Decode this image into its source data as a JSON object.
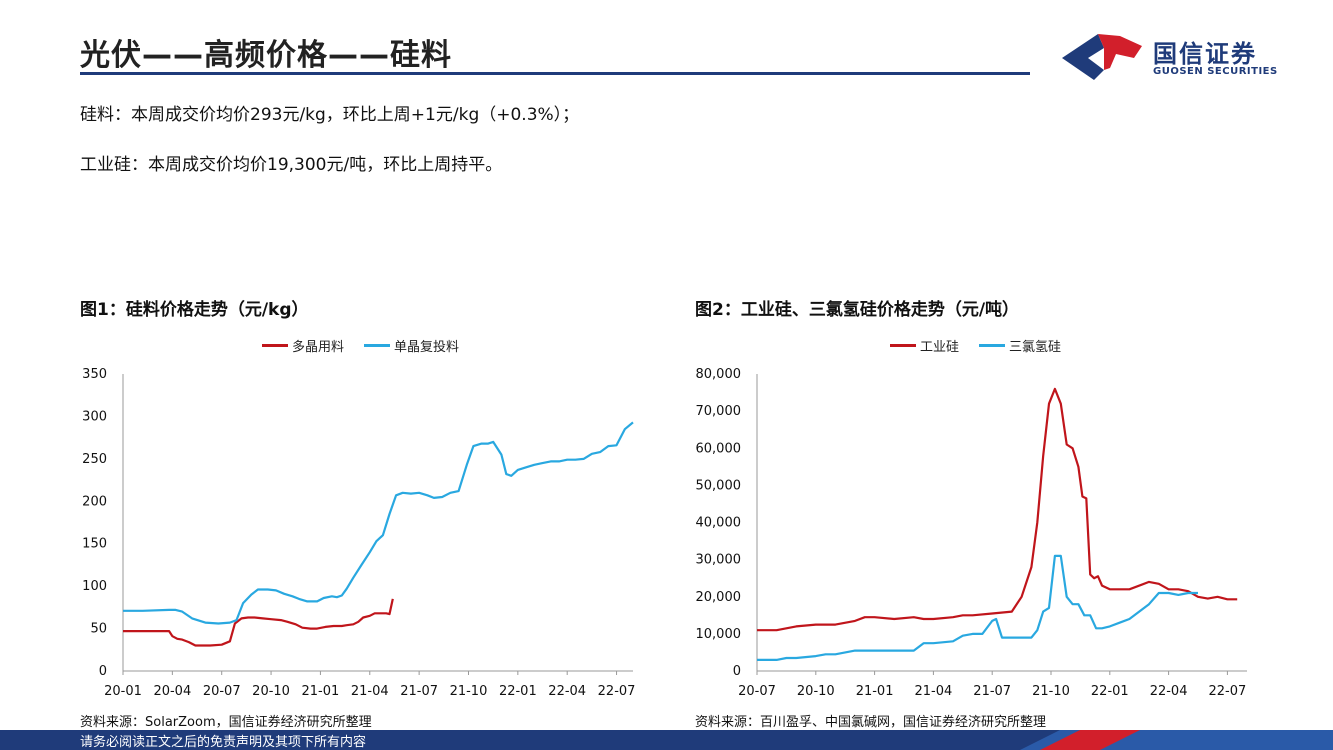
{
  "header": {
    "title": "光伏——高频价格——硅料",
    "logo_cn": "国信证券",
    "logo_en": "GUOSEN SECURITIES"
  },
  "summary": {
    "line1": "硅料：本周成交价均价293元/kg，环比上周+1元/kg（+0.3%）；",
    "line2": "工业硅：本周成交价均价19,300元/吨，环比上周持平。"
  },
  "colors": {
    "red": "#c0151b",
    "blue": "#29a8e0",
    "navy": "#1f3b7a"
  },
  "chart1": {
    "heading": "图1：硅料价格走势（元/kg）",
    "legend": [
      "多晶用料",
      "单晶复投料"
    ],
    "source": "资料来源：SolarZoom，国信证券经济研究所整理"
  },
  "chart2": {
    "heading": "图2：工业硅、三氯氢硅价格走势（元/吨）",
    "legend": [
      "工业硅",
      "三氯氢硅"
    ],
    "source": "资料来源：百川盈孚、中国氯碱网，国信证券经济研究所整理"
  },
  "footer": {
    "text": "请务必阅读正文之后的免责声明及其项下所有内容"
  },
  "chart_data": [
    {
      "type": "line",
      "title": "图1：硅料价格走势（元/kg）",
      "xlabel": "",
      "ylabel": "元/kg",
      "ylim": [
        0,
        350
      ],
      "yticks": [
        0,
        50,
        100,
        150,
        200,
        250,
        300,
        350
      ],
      "ytick_labels": [
        "0",
        "50",
        "100",
        "150",
        "200",
        "250",
        "300",
        "350"
      ],
      "xlim": [
        0,
        31
      ],
      "xticks": [
        0,
        3,
        6,
        9,
        12,
        15,
        18,
        21,
        24,
        27,
        30
      ],
      "xtick_labels": [
        "20-01",
        "20-04",
        "20-07",
        "20-10",
        "21-01",
        "21-04",
        "21-07",
        "21-10",
        "22-01",
        "22-04",
        "22-07"
      ],
      "series": [
        {
          "name": "多晶用料",
          "color": "#c0151b",
          "x": [
            0,
            2.8,
            3.0,
            3.3,
            3.6,
            4.0,
            4.4,
            4.9,
            5.3,
            6.0,
            6.5,
            6.8,
            7.2,
            7.6,
            8.0,
            8.5,
            9.0,
            9.6,
            10.0,
            10.5,
            10.9,
            11.4,
            11.8,
            12.3,
            12.8,
            13.3,
            13.6,
            14.0,
            14.3,
            14.6,
            15.0,
            15.3,
            15.6,
            16.0,
            16.2,
            16.4
          ],
          "values": [
            47,
            47,
            41,
            38,
            37,
            34,
            30,
            30,
            30,
            31,
            35,
            56,
            62,
            63,
            63,
            62,
            61,
            60,
            58,
            55,
            51,
            50,
            50,
            52,
            53,
            53,
            54,
            55,
            58,
            63,
            65,
            68,
            68,
            68,
            67,
            85
          ]
        },
        {
          "name": "单晶复投料",
          "color": "#29a8e0",
          "x": [
            0,
            1.2,
            2.8,
            3.2,
            3.6,
            4.2,
            5.0,
            5.8,
            6.5,
            6.9,
            7.3,
            7.8,
            8.2,
            8.8,
            9.3,
            9.8,
            10.3,
            10.7,
            11.2,
            11.8,
            12.2,
            12.7,
            13.0,
            13.3,
            13.6,
            14.0,
            14.5,
            15.0,
            15.4,
            15.8,
            16.2,
            16.6,
            17.0,
            17.5,
            18.0,
            18.5,
            18.9,
            19.4,
            19.9,
            20.4,
            20.9,
            21.3,
            21.8,
            22.2,
            22.5,
            23.0,
            23.3,
            23.6,
            24.0,
            24.5,
            25.0,
            25.5,
            26.0,
            26.5,
            27.0,
            27.5,
            28.0,
            28.5,
            29.0,
            29.5,
            30.0,
            30.5,
            31.0
          ],
          "values": [
            71,
            71,
            72,
            72,
            70,
            62,
            57,
            56,
            57,
            60,
            80,
            90,
            96,
            96,
            95,
            91,
            88,
            85,
            82,
            82,
            86,
            88,
            87,
            89,
            97,
            110,
            125,
            140,
            153,
            160,
            185,
            207,
            210,
            209,
            210,
            207,
            204,
            205,
            210,
            212,
            243,
            265,
            268,
            268,
            270,
            255,
            232,
            230,
            237,
            240,
            243,
            245,
            247,
            247,
            249,
            249,
            250,
            256,
            258,
            265,
            266,
            285,
            293
          ]
        }
      ]
    },
    {
      "type": "line",
      "title": "图2：工业硅、三氯氢硅价格走势（元/吨）",
      "xlabel": "",
      "ylabel": "元/吨",
      "ylim": [
        0,
        80000
      ],
      "yticks": [
        0,
        10000,
        20000,
        30000,
        40000,
        50000,
        60000,
        70000,
        80000
      ],
      "ytick_labels": [
        "0",
        "10,000",
        "20,000",
        "30,000",
        "40,000",
        "50,000",
        "60,000",
        "70,000",
        "80,000"
      ],
      "xlim": [
        0,
        25
      ],
      "xticks": [
        0,
        3,
        6,
        9,
        12,
        15,
        18,
        21,
        24
      ],
      "xtick_labels": [
        "20-07",
        "20-10",
        "21-01",
        "21-04",
        "21-07",
        "21-10",
        "22-01",
        "22-04",
        "22-07"
      ],
      "series": [
        {
          "name": "工业硅",
          "color": "#c0151b",
          "x": [
            0,
            1,
            2,
            3,
            4,
            5,
            5.5,
            6,
            7,
            8,
            8.5,
            9,
            10,
            10.5,
            11,
            12,
            13,
            13.5,
            14,
            14.3,
            14.6,
            14.9,
            15.2,
            15.5,
            15.8,
            16.1,
            16.4,
            16.6,
            16.8,
            17.0,
            17.2,
            17.4,
            17.6,
            18,
            19,
            20,
            20.5,
            21,
            21.5,
            22,
            22.5,
            23,
            23.5,
            24,
            24.5
          ],
          "values": [
            11000,
            11000,
            12000,
            12500,
            12500,
            13500,
            14500,
            14500,
            14000,
            14500,
            14000,
            14000,
            14500,
            15000,
            15000,
            15500,
            16000,
            20000,
            28000,
            40000,
            58000,
            72000,
            76000,
            72000,
            61000,
            60000,
            55000,
            47000,
            46500,
            26000,
            25000,
            25500,
            23000,
            22000,
            22000,
            24000,
            23500,
            22000,
            22000,
            21500,
            20000,
            19500,
            20000,
            19300,
            19300
          ]
        },
        {
          "name": "三氯氢硅",
          "color": "#29a8e0",
          "x": [
            0,
            1,
            1.5,
            2,
            3,
            3.5,
            4,
            4.5,
            5,
            6,
            7,
            8,
            8.5,
            9,
            10,
            10.5,
            11,
            11.5,
            12,
            12.2,
            12.5,
            13,
            13.5,
            14,
            14.3,
            14.6,
            14.9,
            15.2,
            15.5,
            15.8,
            16.1,
            16.4,
            16.7,
            17.0,
            17.3,
            17.6,
            18,
            18.5,
            19,
            19.5,
            20,
            20.5,
            21,
            21.5,
            22,
            22.5
          ],
          "values": [
            3000,
            3000,
            3500,
            3500,
            4000,
            4500,
            4500,
            5000,
            5500,
            5500,
            5500,
            5500,
            7500,
            7500,
            8000,
            9500,
            10000,
            10000,
            13500,
            14000,
            9000,
            9000,
            9000,
            9000,
            11000,
            16000,
            17000,
            31000,
            31000,
            20000,
            18000,
            18000,
            15000,
            15000,
            11500,
            11500,
            12000,
            13000,
            14000,
            16000,
            18000,
            21000,
            21000,
            20500,
            21000,
            21000
          ]
        }
      ]
    }
  ]
}
